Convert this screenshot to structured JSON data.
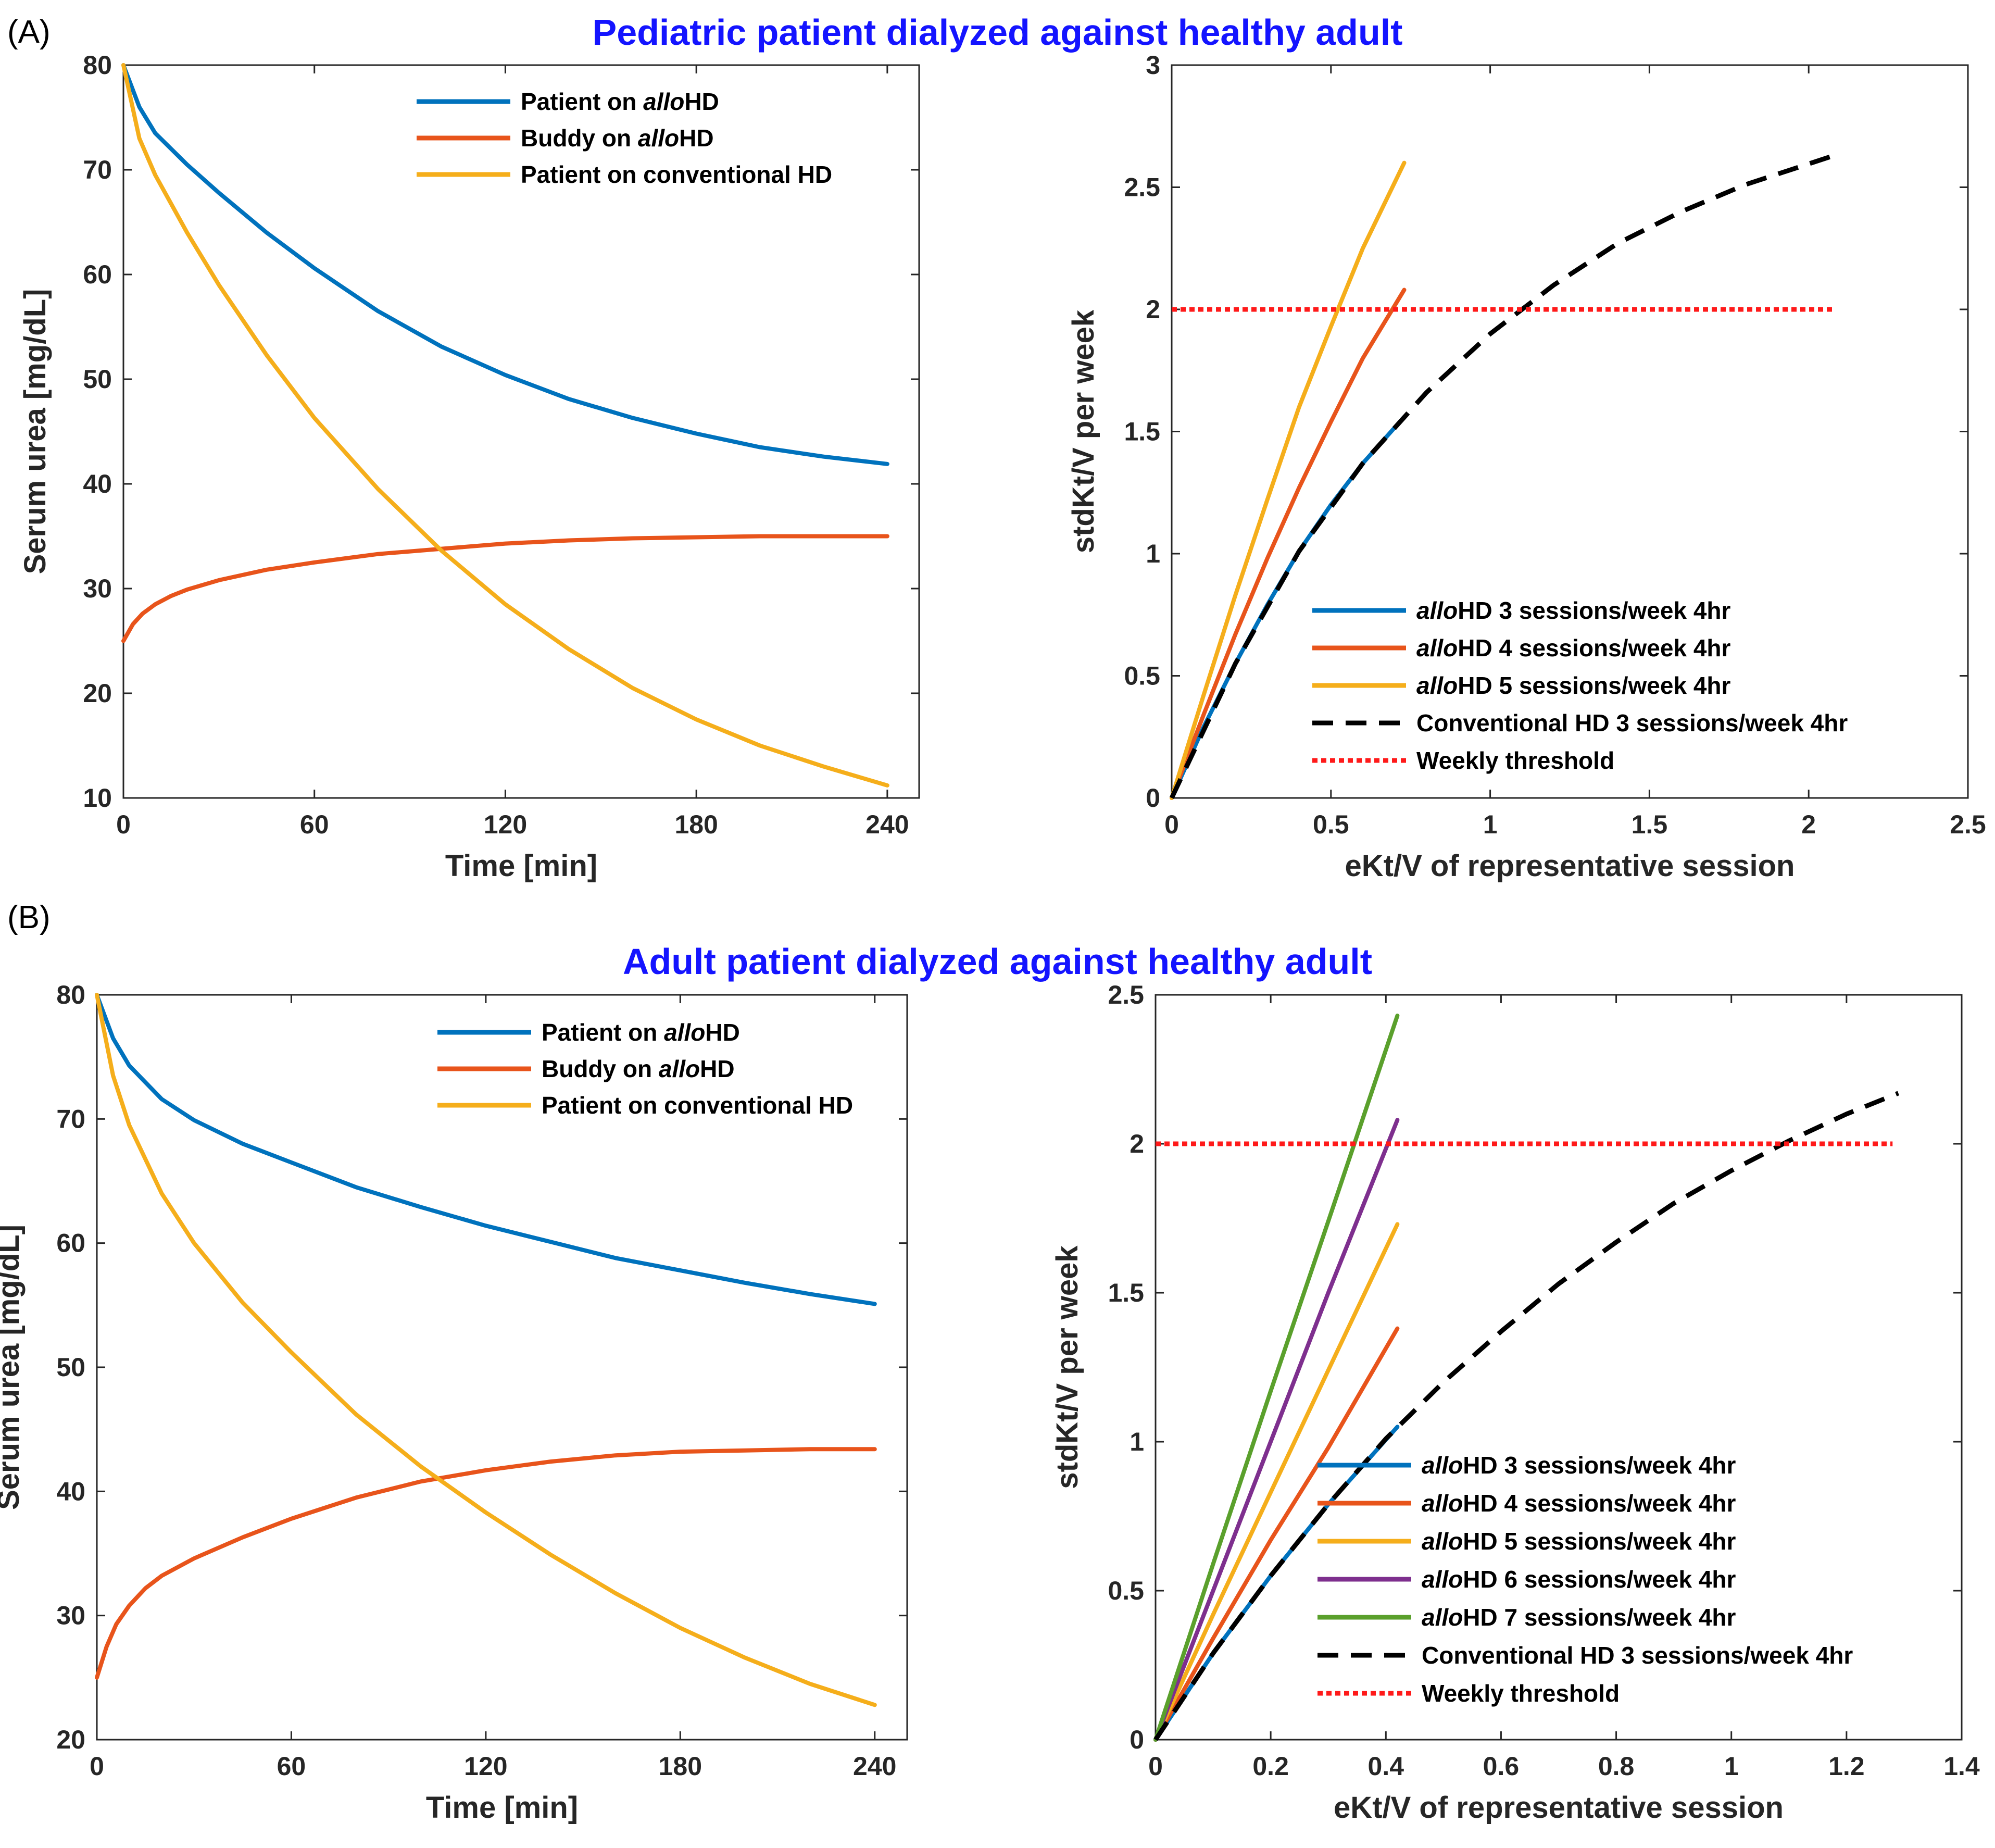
{
  "panels": {
    "a": {
      "label": "(A)",
      "title": "Pediatric patient dialyzed against healthy adult"
    },
    "b": {
      "label": "(B)",
      "title": "Adult patient dialyzed against healthy adult"
    }
  },
  "colors": {
    "blue": "#0072bd",
    "orange": "#e8541b",
    "yellow": "#f5ae1b",
    "purple": "#7e2f8e",
    "green": "#5aa02c",
    "black": "#000000",
    "red": "#ff1a1a"
  },
  "chart_data": [
    {
      "id": "a_left",
      "type": "line",
      "xlabel": "Time [min]",
      "ylabel": "Serum urea [mg/dL]",
      "xlim": [
        0,
        250
      ],
      "ylim": [
        10,
        80
      ],
      "xticks": [
        0,
        60,
        120,
        180,
        240
      ],
      "yticks": [
        10,
        20,
        30,
        40,
        50,
        60,
        70,
        80
      ],
      "legend": "top-center",
      "series": [
        {
          "name": "Patient on alloHD",
          "pre": "Patient on ",
          "ital": "allo",
          "post": "HD",
          "color": "blue",
          "style": "solid",
          "x": [
            0,
            5,
            10,
            20,
            30,
            45,
            60,
            80,
            100,
            120,
            140,
            160,
            180,
            200,
            220,
            240
          ],
          "y": [
            80,
            76,
            73.5,
            70.5,
            67.8,
            64,
            60.6,
            56.5,
            53.1,
            50.4,
            48.1,
            46.3,
            44.8,
            43.5,
            42.6,
            41.9
          ]
        },
        {
          "name": "Buddy on alloHD",
          "pre": "Buddy on ",
          "ital": "allo",
          "post": "HD",
          "color": "orange",
          "style": "solid",
          "x": [
            0,
            3,
            6,
            10,
            15,
            20,
            30,
            45,
            60,
            80,
            100,
            120,
            140,
            160,
            180,
            200,
            220,
            240
          ],
          "y": [
            25,
            26.6,
            27.6,
            28.5,
            29.3,
            29.9,
            30.8,
            31.8,
            32.5,
            33.3,
            33.8,
            34.3,
            34.6,
            34.8,
            34.9,
            35,
            35,
            35
          ]
        },
        {
          "name": "Patient on conventional HD",
          "pre": "Patient on conventional HD",
          "ital": "",
          "post": "",
          "color": "yellow",
          "style": "solid",
          "x": [
            0,
            5,
            10,
            20,
            30,
            45,
            60,
            80,
            100,
            120,
            140,
            160,
            180,
            200,
            220,
            240
          ],
          "y": [
            80,
            73,
            69.5,
            64,
            59,
            52.3,
            46.3,
            39.5,
            33.6,
            28.5,
            24.2,
            20.5,
            17.5,
            15,
            13,
            11.2
          ]
        }
      ]
    },
    {
      "id": "a_right",
      "type": "line",
      "xlabel": "eKt/V of representative session",
      "ylabel": "stdKt/V per week",
      "xlim": [
        0,
        2.5
      ],
      "ylim": [
        0,
        3
      ],
      "xticks": [
        0,
        0.5,
        1,
        1.5,
        2,
        2.5
      ],
      "yticks": [
        0,
        0.5,
        1,
        1.5,
        2,
        2.5,
        3
      ],
      "legend": "bottom-right",
      "series": [
        {
          "name": "alloHD 3 sessions/week 4hr",
          "pre": "",
          "ital": "allo",
          "post": "HD 3 sessions/week 4hr",
          "color": "blue",
          "style": "solid",
          "x": [
            0,
            0.1,
            0.2,
            0.3,
            0.4,
            0.5,
            0.6,
            0.73
          ],
          "y": [
            0,
            0.29,
            0.55,
            0.79,
            1.01,
            1.2,
            1.37,
            1.56
          ]
        },
        {
          "name": "alloHD 4 sessions/week 4hr",
          "pre": "",
          "ital": "allo",
          "post": "HD 4 sessions/week 4hr",
          "color": "orange",
          "style": "solid",
          "x": [
            0,
            0.1,
            0.2,
            0.3,
            0.4,
            0.5,
            0.6,
            0.73
          ],
          "y": [
            0,
            0.34,
            0.67,
            0.98,
            1.27,
            1.54,
            1.8,
            2.08
          ]
        },
        {
          "name": "alloHD 5 sessions/week 4hr",
          "pre": "",
          "ital": "allo",
          "post": "HD 5 sessions/week 4hr",
          "color": "yellow",
          "style": "solid",
          "x": [
            0,
            0.1,
            0.2,
            0.3,
            0.4,
            0.5,
            0.6,
            0.73
          ],
          "y": [
            0,
            0.42,
            0.83,
            1.22,
            1.6,
            1.93,
            2.25,
            2.6
          ]
        },
        {
          "name": "Conventional HD 3 sessions/week 4hr",
          "pre": "Conventional HD 3 sessions/week 4hr",
          "ital": "",
          "post": "",
          "color": "black",
          "style": "dashed",
          "x": [
            0,
            0.2,
            0.4,
            0.6,
            0.8,
            1.0,
            1.2,
            1.4,
            1.6,
            1.8,
            2.08
          ],
          "y": [
            0,
            0.55,
            1.01,
            1.37,
            1.66,
            1.9,
            2.1,
            2.27,
            2.4,
            2.51,
            2.63
          ]
        },
        {
          "name": "Weekly threshold",
          "pre": "Weekly threshold",
          "ital": "",
          "post": "",
          "color": "red",
          "style": "dotted",
          "x": [
            0,
            2.08
          ],
          "y": [
            2,
            2
          ]
        }
      ]
    },
    {
      "id": "b_left",
      "type": "line",
      "xlabel": "Time [min]",
      "ylabel": "Serum urea [mg/dL]",
      "xlim": [
        0,
        250
      ],
      "ylim": [
        20,
        80
      ],
      "xticks": [
        0,
        60,
        120,
        180,
        240
      ],
      "yticks": [
        20,
        30,
        40,
        50,
        60,
        70,
        80
      ],
      "legend": "top-center",
      "series": [
        {
          "name": "Patient on alloHD",
          "pre": "Patient on  ",
          "ital": "allo",
          "post": "HD",
          "color": "blue",
          "style": "solid",
          "x": [
            0,
            5,
            10,
            20,
            30,
            45,
            60,
            80,
            100,
            120,
            140,
            160,
            180,
            200,
            220,
            240
          ],
          "y": [
            80,
            76.5,
            74.3,
            71.6,
            69.9,
            68,
            66.5,
            64.5,
            62.9,
            61.4,
            60.1,
            58.8,
            57.8,
            56.8,
            55.9,
            55.1
          ]
        },
        {
          "name": "Buddy on alloHD",
          "pre": "Buddy on  ",
          "ital": "allo",
          "post": "HD",
          "color": "orange",
          "style": "solid",
          "x": [
            0,
            3,
            6,
            10,
            15,
            20,
            30,
            45,
            60,
            80,
            100,
            120,
            140,
            160,
            180,
            200,
            220,
            240
          ],
          "y": [
            25,
            27.5,
            29.3,
            30.8,
            32.2,
            33.2,
            34.6,
            36.3,
            37.8,
            39.5,
            40.8,
            41.7,
            42.4,
            42.9,
            43.2,
            43.3,
            43.4,
            43.4
          ]
        },
        {
          "name": "Patient on conventional HD",
          "pre": "Patient on conventional HD",
          "ital": "",
          "post": "",
          "color": "yellow",
          "style": "solid",
          "x": [
            0,
            5,
            10,
            20,
            30,
            45,
            60,
            80,
            100,
            120,
            140,
            160,
            180,
            200,
            220,
            240
          ],
          "y": [
            80,
            73.5,
            69.5,
            64,
            60,
            55.2,
            51.2,
            46.2,
            42,
            38.3,
            34.9,
            31.8,
            29,
            26.6,
            24.5,
            22.8
          ]
        }
      ]
    },
    {
      "id": "b_right",
      "type": "line",
      "xlabel": "eKt/V of representative session",
      "ylabel": "stdKt/V per week",
      "xlim": [
        0,
        1.4
      ],
      "ylim": [
        0,
        2.5
      ],
      "xticks": [
        0,
        0.2,
        0.4,
        0.6,
        0.8,
        1,
        1.2,
        1.4
      ],
      "yticks": [
        0,
        0.5,
        1,
        1.5,
        2,
        2.5
      ],
      "legend": "bottom-right",
      "series": [
        {
          "name": "alloHD 3 sessions/week 4hr",
          "pre": "",
          "ital": "allo",
          "post": "HD 3 sessions/week 4hr",
          "color": "blue",
          "style": "solid",
          "x": [
            0,
            0.1,
            0.2,
            0.3,
            0.42
          ],
          "y": [
            0,
            0.29,
            0.55,
            0.79,
            1.05
          ]
        },
        {
          "name": "alloHD 4 sessions/week 4hr",
          "pre": "",
          "ital": "allo",
          "post": "HD 4 sessions/week 4hr",
          "color": "orange",
          "style": "solid",
          "x": [
            0,
            0.1,
            0.2,
            0.3,
            0.42
          ],
          "y": [
            0,
            0.34,
            0.67,
            0.98,
            1.38
          ]
        },
        {
          "name": "alloHD 5 sessions/week 4hr",
          "pre": "",
          "ital": "allo",
          "post": "HD 5 sessions/week 4hr",
          "color": "yellow",
          "style": "solid",
          "x": [
            0,
            0.1,
            0.2,
            0.3,
            0.42
          ],
          "y": [
            0,
            0.42,
            0.83,
            1.24,
            1.73
          ]
        },
        {
          "name": "alloHD 6 sessions/week 4hr",
          "pre": "",
          "ital": "allo",
          "post": "HD 6 sessions/week 4hr",
          "color": "purple",
          "style": "solid",
          "x": [
            0,
            0.1,
            0.2,
            0.3,
            0.42
          ],
          "y": [
            0,
            0.5,
            1.0,
            1.5,
            2.08
          ]
        },
        {
          "name": "alloHD 7 sessions/week 4hr",
          "pre": "",
          "ital": "allo",
          "post": "HD 7 sessions/week 4hr",
          "color": "green",
          "style": "solid",
          "x": [
            0,
            0.1,
            0.2,
            0.3,
            0.42
          ],
          "y": [
            0,
            0.59,
            1.17,
            1.74,
            2.43
          ]
        },
        {
          "name": "Conventional HD 3 sessions/week 4hr",
          "pre": "Conventional HD 3 sessions/week 4hr",
          "ital": "",
          "post": "",
          "color": "black",
          "style": "dashed",
          "x": [
            0,
            0.1,
            0.2,
            0.3,
            0.4,
            0.5,
            0.6,
            0.7,
            0.8,
            0.9,
            1.0,
            1.1,
            1.2,
            1.29
          ],
          "y": [
            0,
            0.29,
            0.55,
            0.79,
            1.01,
            1.2,
            1.37,
            1.53,
            1.67,
            1.8,
            1.91,
            2.01,
            2.1,
            2.17
          ]
        },
        {
          "name": "Weekly threshold",
          "pre": "Weekly threshold",
          "ital": "",
          "post": "",
          "color": "red",
          "style": "dotted",
          "x": [
            0,
            1.28
          ],
          "y": [
            2,
            2
          ]
        }
      ]
    }
  ]
}
